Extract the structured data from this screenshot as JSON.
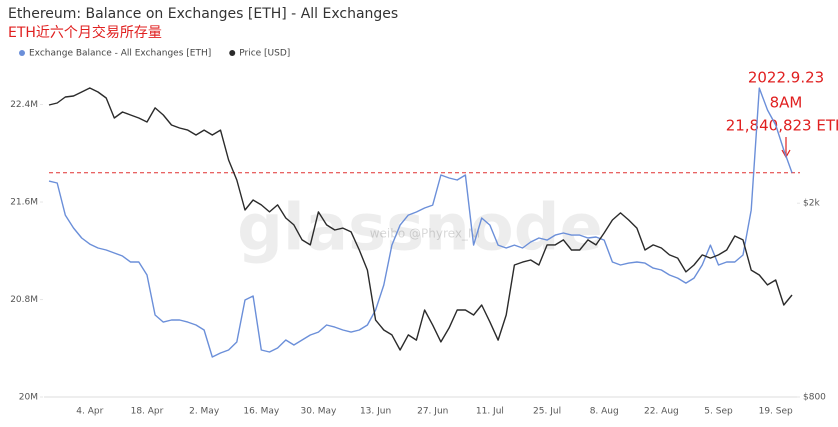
{
  "chart_data": {
    "type": "line",
    "title": "Ethereum: Balance on Exchanges [ETH] - All Exchanges",
    "subtitle": "ETH近六个月交易所存量",
    "categories": [
      null,
      null,
      null,
      null,
      null,
      "4. Apr",
      null,
      null,
      null,
      null,
      null,
      null,
      "18. Apr",
      null,
      null,
      null,
      null,
      null,
      null,
      "2. May",
      null,
      null,
      null,
      null,
      null,
      null,
      "16. May",
      null,
      null,
      null,
      null,
      null,
      null,
      "30. May",
      null,
      null,
      null,
      null,
      null,
      null,
      "13. Jun",
      null,
      null,
      null,
      null,
      null,
      null,
      "27. Jun",
      null,
      null,
      null,
      null,
      null,
      null,
      "11. Jul",
      null,
      null,
      null,
      null,
      null,
      null,
      "25. Jul",
      null,
      null,
      null,
      null,
      null,
      null,
      "8. Aug",
      null,
      null,
      null,
      null,
      null,
      null,
      "22. Aug",
      null,
      null,
      null,
      null,
      null,
      null,
      "5. Sep",
      null,
      null,
      null,
      null,
      null,
      null,
      "19. Sep",
      null,
      null
    ],
    "series": [
      {
        "name": "Exchange Balance - All Exchanges [ETH]",
        "color": "#6b8fd9",
        "values": [
          21772000,
          21756000,
          21493000,
          21387000,
          21305000,
          21255000,
          21223000,
          21206000,
          21182000,
          21157000,
          21108000,
          21108000,
          21001000,
          20673000,
          20615000,
          20632000,
          20632000,
          20615000,
          20591000,
          20550000,
          20328000,
          20361000,
          20386000,
          20451000,
          20796000,
          20829000,
          20386000,
          20369000,
          20402000,
          20468000,
          20427000,
          20468000,
          20509000,
          20533000,
          20591000,
          20574000,
          20550000,
          20533000,
          20550000,
          20591000,
          20714000,
          20919000,
          21247000,
          21411000,
          21493000,
          21518000,
          21551000,
          21575000,
          21822000,
          21797000,
          21781000,
          21822000,
          21247000,
          21469000,
          21411000,
          21247000,
          21223000,
          21247000,
          21223000,
          21272000,
          21305000,
          21288000,
          21329000,
          21346000,
          21329000,
          21329000,
          21305000,
          21313000,
          21288000,
          21108000,
          21083000,
          21099000,
          21108000,
          21099000,
          21058000,
          21042000,
          21001000,
          20976000,
          20935000,
          20976000,
          21083000,
          21247000,
          21083000,
          21108000,
          21108000,
          21165000,
          21534000,
          22535000,
          22355000,
          22232000,
          22027000,
          21840823
        ]
      },
      {
        "name": "Price [USD]",
        "color": "#2b2b2b",
        "axis": "y2",
        "values": [
          3182,
          3212,
          3304,
          3320,
          3384,
          3448,
          3384,
          3289,
          2992,
          3078,
          3035,
          2992,
          2936,
          3138,
          3035,
          2894,
          2854,
          2826,
          2761,
          2826,
          2761,
          2826,
          2453,
          2232,
          1937,
          2030,
          1984,
          1919,
          1984,
          1865,
          1805,
          1681,
          1642,
          1919,
          1805,
          1762,
          1778,
          1746,
          1603,
          1458,
          1151,
          1098,
          1073,
          999,
          1073,
          1047,
          1207,
          1124,
          1038,
          1109,
          1207,
          1207,
          1179,
          1236,
          1141,
          1047,
          1179,
          1493,
          1514,
          1529,
          1493,
          1642,
          1642,
          1681,
          1603,
          1603,
          1681,
          1642,
          1738,
          1847,
          1910,
          1847,
          1778,
          1603,
          1642,
          1618,
          1566,
          1543,
          1445,
          1493,
          1566,
          1543,
          1566,
          1603,
          1713,
          1681,
          1458,
          1424,
          1359,
          1391,
          1236,
          1296
        ]
      }
    ],
    "ylim": [
      20000000,
      22700000
    ],
    "yticks": [
      {
        "value": 20000000,
        "label": "20M"
      },
      {
        "value": 20800000,
        "label": "20.8M"
      },
      {
        "value": 21600000,
        "label": "21.6M"
      },
      {
        "value": 22400000,
        "label": "22.4M"
      }
    ],
    "y2lim": [
      800,
      3790
    ],
    "y2scale": "log",
    "y2ticks": [
      {
        "value": 800,
        "label": "$800"
      },
      {
        "value": 2000,
        "label": "$2k"
      }
    ],
    "grid": false,
    "legend": "top-left",
    "reference_line": {
      "value": 21840823,
      "color": "#e03030"
    },
    "annotations": [
      "2022.9.23",
      "8AM",
      "21,840,823 ETH"
    ],
    "watermark": "glassnode",
    "credit": "weibo @Phyrex_Ni"
  }
}
